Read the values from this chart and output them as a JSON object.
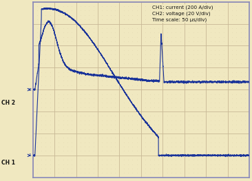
{
  "bg_color": "#f0e8c0",
  "grid_color": "#c8b896",
  "border_color": "#8888bb",
  "trace_color": "#1a3399",
  "text_color": "#111111",
  "ch1_label": "CH 1",
  "ch2_label": "CH 2",
  "annotation": "CH1: current (200 A/div)\nCH2: voltage (20 V/div)\nTime scale: 50 μs/div)",
  "grid_nx": 10,
  "grid_ny": 8,
  "minor_ticks_per_div": 5,
  "xlim": [
    0,
    10
  ],
  "ylim": [
    0,
    8
  ],
  "ch2_ref_y": 4.0,
  "ch1_ref_y": 1.0
}
